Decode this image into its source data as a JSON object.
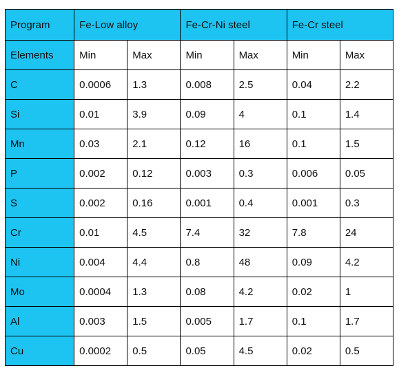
{
  "colors": {
    "header_fill": "#1dc4f2",
    "border": "#000000",
    "text": "#111111"
  },
  "table": {
    "corner_label": "Program",
    "row_header_label": "Elements",
    "programs": [
      "Fe-Low alloy",
      "Fe-Cr-Ni steel",
      "Fe-Cr steel"
    ],
    "min_label": "Min",
    "max_label": "Max",
    "rows": [
      {
        "element": "C",
        "values": [
          "0.0006",
          "1.3",
          "0.008",
          "2.5",
          "0.04",
          "2.2"
        ]
      },
      {
        "element": "Si",
        "values": [
          "0.01",
          "3.9",
          "0.09",
          "4",
          "0.1",
          "1.4"
        ]
      },
      {
        "element": "Mn",
        "values": [
          "0.03",
          "2.1",
          "0.12",
          "16",
          "0.1",
          "1.5"
        ]
      },
      {
        "element": "P",
        "values": [
          "0.002",
          "0.12",
          "0.003",
          "0.3",
          "0.006",
          "0.05"
        ]
      },
      {
        "element": "S",
        "values": [
          "0.002",
          "0.16",
          "0.001",
          "0.4",
          "0.001",
          "0.3"
        ]
      },
      {
        "element": "Cr",
        "values": [
          "0.01",
          "4.5",
          "7.4",
          "32",
          "7.8",
          "24"
        ]
      },
      {
        "element": "Ni",
        "values": [
          "0.004",
          "4.4",
          "0.8",
          "48",
          "0.09",
          "4.2"
        ]
      },
      {
        "element": "Mo",
        "values": [
          "0.0004",
          "1.3",
          "0.08",
          "4.2",
          "0.02",
          "1"
        ]
      },
      {
        "element": "Al",
        "values": [
          "0.003",
          "1.5",
          "0.005",
          "1.7",
          "0.1",
          "1.7"
        ]
      },
      {
        "element": "Cu",
        "values": [
          "0.0002",
          "0.5",
          "0.05",
          "4.5",
          "0.02",
          "0.5"
        ]
      }
    ]
  }
}
